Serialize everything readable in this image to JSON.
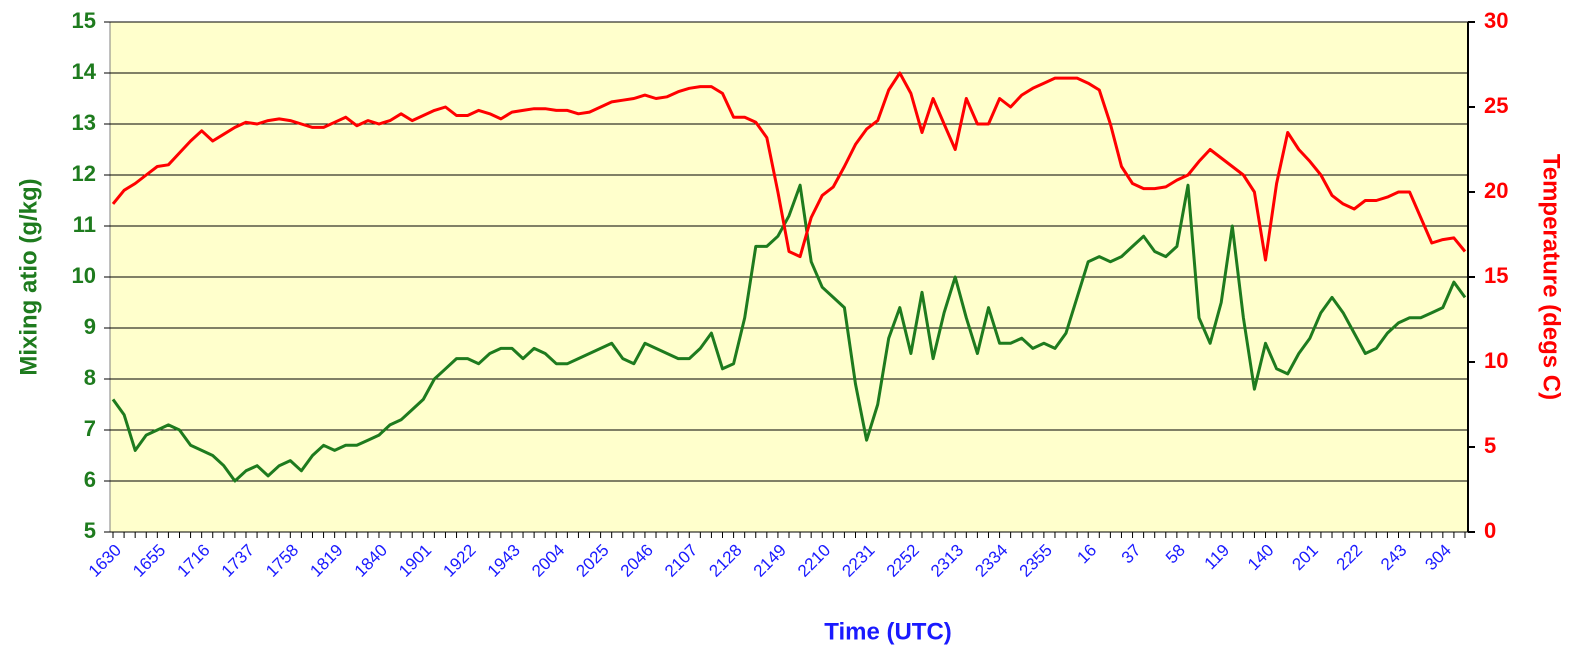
{
  "chart_data": {
    "type": "line",
    "x_label": "Time (UTC)",
    "y_label": "Mixing atio (g/kg)",
    "y2_label": "Temperature (degs C)",
    "categories": [
      "1630",
      null,
      null,
      null,
      "1655",
      null,
      null,
      null,
      "1716",
      null,
      null,
      null,
      "1737",
      null,
      null,
      null,
      "1758",
      null,
      null,
      null,
      "1819",
      null,
      null,
      null,
      "1840",
      null,
      null,
      null,
      "1901",
      null,
      null,
      null,
      "1922",
      null,
      null,
      null,
      "1943",
      null,
      null,
      null,
      "2004",
      null,
      null,
      null,
      "2025",
      null,
      null,
      null,
      "2046",
      null,
      null,
      null,
      "2107",
      null,
      null,
      null,
      "2128",
      null,
      null,
      null,
      "2149",
      null,
      null,
      null,
      "2210",
      null,
      null,
      null,
      "2231",
      null,
      null,
      null,
      "2252",
      null,
      null,
      null,
      "2313",
      null,
      null,
      null,
      "2334",
      null,
      null,
      null,
      "2355",
      null,
      null,
      null,
      "16",
      null,
      null,
      null,
      "37",
      null,
      null,
      null,
      "58",
      null,
      null,
      null,
      "119",
      null,
      null,
      null,
      "140",
      null,
      null,
      null,
      "201",
      null,
      null,
      null,
      "222",
      null,
      null,
      null,
      "243",
      null,
      null,
      null,
      "304",
      null,
      null
    ],
    "series": [
      {
        "name": "Mixing atio (g/kg)",
        "color": "#1e7b1e",
        "axis": "y",
        "values": [
          7.6,
          7.3,
          6.6,
          6.9,
          7.0,
          7.1,
          7.0,
          6.7,
          6.6,
          6.5,
          6.3,
          6.0,
          6.2,
          6.3,
          6.1,
          6.3,
          6.4,
          6.2,
          6.5,
          6.7,
          6.6,
          6.7,
          6.7,
          6.8,
          6.9,
          7.1,
          7.2,
          7.4,
          7.6,
          8.0,
          8.2,
          8.4,
          8.4,
          8.3,
          8.5,
          8.6,
          8.6,
          8.4,
          8.6,
          8.5,
          8.3,
          8.3,
          8.4,
          8.5,
          8.6,
          8.7,
          8.4,
          8.3,
          8.7,
          8.6,
          8.5,
          8.4,
          8.4,
          8.6,
          8.9,
          8.2,
          8.3,
          9.2,
          10.6,
          10.6,
          10.8,
          11.2,
          11.8,
          10.3,
          9.8,
          9.6,
          9.4,
          7.9,
          6.8,
          7.5,
          8.8,
          9.4,
          8.5,
          9.7,
          8.4,
          9.3,
          10.0,
          9.2,
          8.5,
          9.4,
          8.7,
          8.7,
          8.8,
          8.6,
          8.7,
          8.6,
          8.9,
          9.6,
          10.3,
          10.4,
          10.3,
          10.4,
          10.6,
          10.8,
          10.5,
          10.4,
          10.6,
          11.8,
          9.2,
          8.7,
          9.5,
          11.0,
          9.2,
          7.8,
          8.7,
          8.2,
          8.1,
          8.5,
          8.8,
          9.3,
          9.6,
          9.3,
          8.9,
          8.5,
          8.6,
          8.9,
          9.1,
          9.2,
          9.2,
          9.3,
          9.4,
          9.9,
          9.6
        ]
      },
      {
        "name": "Temperature (degs C)",
        "color": "#ff0000",
        "axis": "y2",
        "values": [
          19.3,
          20.1,
          20.5,
          21.0,
          21.5,
          21.6,
          22.3,
          23.0,
          23.6,
          23.0,
          23.4,
          23.8,
          24.1,
          24.0,
          24.2,
          24.3,
          24.2,
          24.0,
          23.8,
          23.8,
          24.1,
          24.4,
          23.9,
          24.2,
          24.0,
          24.2,
          24.6,
          24.2,
          24.5,
          24.8,
          25.0,
          24.5,
          24.5,
          24.8,
          24.6,
          24.3,
          24.7,
          24.8,
          24.9,
          24.9,
          24.8,
          24.8,
          24.6,
          24.7,
          25.0,
          25.3,
          25.4,
          25.5,
          25.7,
          25.5,
          25.6,
          25.9,
          26.1,
          26.2,
          26.2,
          25.8,
          24.4,
          24.4,
          24.1,
          23.2,
          20.0,
          16.5,
          16.2,
          18.5,
          19.8,
          20.3,
          21.5,
          22.8,
          23.7,
          24.2,
          26.0,
          27.0,
          25.8,
          23.5,
          25.5,
          24.0,
          22.5,
          25.5,
          24.0,
          24.0,
          25.5,
          25.0,
          25.7,
          26.1,
          26.4,
          26.7,
          26.7,
          26.7,
          26.4,
          26.0,
          24.0,
          21.5,
          20.5,
          20.2,
          20.2,
          20.3,
          20.7,
          21.0,
          21.8,
          22.5,
          22.0,
          21.5,
          21.0,
          20.0,
          16.0,
          20.5,
          23.5,
          22.5,
          21.8,
          21.0,
          19.8,
          19.3,
          19.0,
          19.5,
          19.5,
          19.7,
          20.0,
          20.0,
          18.5,
          17.0,
          17.2,
          17.3,
          16.5
        ]
      }
    ],
    "ylim": [
      5,
      15
    ],
    "yticks": [
      5,
      6,
      7,
      8,
      9,
      10,
      11,
      12,
      13,
      14,
      15
    ],
    "y2lim": [
      0,
      30
    ],
    "y2ticks": [
      0,
      5,
      10,
      15,
      20,
      25,
      30
    ],
    "grid": true,
    "background": "#ffffcc"
  }
}
